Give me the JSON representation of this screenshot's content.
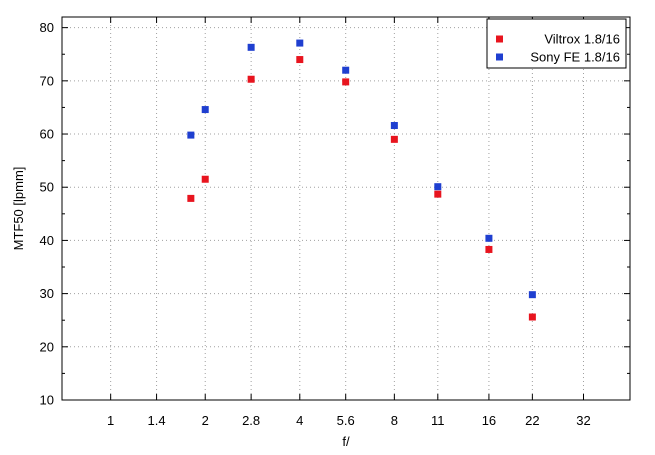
{
  "chart_data": {
    "type": "scatter",
    "title": "",
    "xlabel": "f/",
    "ylabel": "MTF50 [lpmm]",
    "x_scale": "log",
    "x_ticks": [
      "1",
      "1.4",
      "2",
      "2.8",
      "4",
      "5.6",
      "8",
      "11",
      "16",
      "22",
      "32"
    ],
    "xlim": [
      0.7,
      45
    ],
    "ylim": [
      10,
      82
    ],
    "y_ticks": [
      10,
      20,
      30,
      40,
      50,
      60,
      70,
      80
    ],
    "grid": true,
    "legend_position": "top-right",
    "series": [
      {
        "name": "Viltrox 1.8/16",
        "color": "#e8141e",
        "x": [
          1.8,
          2,
          2.8,
          4,
          5.6,
          8,
          11,
          16,
          22
        ],
        "y": [
          47.9,
          51.5,
          70.3,
          74.0,
          69.8,
          59.0,
          48.7,
          38.3,
          25.6
        ]
      },
      {
        "name": "Sony FE 1.8/16",
        "color": "#1f3fd0",
        "x": [
          1.8,
          2,
          2.8,
          4,
          5.6,
          8,
          11,
          16,
          22
        ],
        "y": [
          59.8,
          64.6,
          76.3,
          77.1,
          72.0,
          61.6,
          50.1,
          40.4,
          29.8
        ]
      }
    ]
  }
}
